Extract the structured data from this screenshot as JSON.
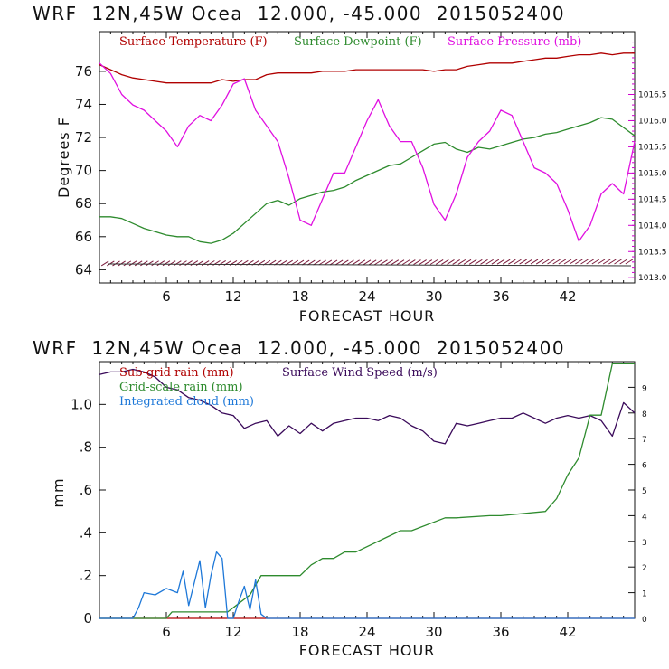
{
  "charts": {
    "top_title": "WRF  12N,45W Ocea  12.000, -45.000  2015052400",
    "bottom_title": "WRF  12N,45W Ocea  12.000, -45.000  2015052400"
  },
  "chart_data": [
    {
      "type": "line",
      "title": "WRF  12N,45W Ocea  12.000, -45.000  2015052400",
      "xlabel": "FORECAST HOUR",
      "ylabel": "Degrees F",
      "xlim": [
        0,
        48
      ],
      "ylim": [
        63.2,
        78.4
      ],
      "y2lim": [
        1012.9,
        1017.7
      ],
      "x_ticks": [
        6,
        12,
        18,
        24,
        30,
        36,
        42
      ],
      "y_ticks": [
        64,
        66,
        68,
        70,
        72,
        74,
        76
      ],
      "y2_ticks": [
        1013.0,
        1013.5,
        1014.0,
        1014.5,
        1015.0,
        1015.5,
        1016.0,
        1016.5
      ],
      "legend": [
        "Surface Temperature (F)",
        "Surface Dewpoint (F)",
        "Surface Pressure (mb)"
      ],
      "series": [
        {
          "name": "Surface Temperature (F)",
          "color": "#b00000",
          "axis": "left",
          "x": [
            0,
            1,
            2,
            3,
            4,
            5,
            6,
            7,
            8,
            9,
            10,
            11,
            12,
            13,
            14,
            15,
            16,
            17,
            18,
            19,
            20,
            21,
            22,
            23,
            24,
            25,
            26,
            27,
            28,
            29,
            30,
            31,
            32,
            33,
            34,
            35,
            36,
            37,
            38,
            39,
            40,
            41,
            42,
            43,
            44,
            45,
            46,
            47,
            48
          ],
          "values": [
            76.4,
            76.1,
            75.8,
            75.6,
            75.5,
            75.4,
            75.3,
            75.3,
            75.3,
            75.3,
            75.3,
            75.5,
            75.4,
            75.5,
            75.5,
            75.8,
            75.9,
            75.9,
            75.9,
            75.9,
            76.0,
            76.0,
            76.0,
            76.1,
            76.1,
            76.1,
            76.1,
            76.1,
            76.1,
            76.1,
            76.0,
            76.1,
            76.1,
            76.3,
            76.4,
            76.5,
            76.5,
            76.5,
            76.6,
            76.7,
            76.8,
            76.8,
            76.9,
            77.0,
            77.0,
            77.1,
            77.0,
            77.1,
            77.1
          ]
        },
        {
          "name": "Surface Dewpoint (F)",
          "color": "#2e8b2e",
          "axis": "left",
          "x": [
            0,
            1,
            2,
            3,
            4,
            5,
            6,
            7,
            8,
            9,
            10,
            11,
            12,
            13,
            14,
            15,
            16,
            17,
            18,
            19,
            20,
            21,
            22,
            23,
            24,
            25,
            26,
            27,
            28,
            29,
            30,
            31,
            32,
            33,
            34,
            35,
            36,
            37,
            38,
            39,
            40,
            41,
            42,
            43,
            44,
            45,
            46,
            47,
            48
          ],
          "values": [
            67.2,
            67.2,
            67.1,
            66.8,
            66.5,
            66.3,
            66.1,
            66.0,
            66.0,
            65.7,
            65.6,
            65.8,
            66.2,
            66.8,
            67.4,
            68.0,
            68.2,
            67.9,
            68.3,
            68.5,
            68.7,
            68.8,
            69.0,
            69.4,
            69.7,
            70.0,
            70.3,
            70.4,
            70.8,
            71.2,
            71.6,
            71.7,
            71.3,
            71.1,
            71.4,
            71.3,
            71.5,
            71.7,
            71.9,
            72.0,
            72.2,
            72.3,
            72.5,
            72.7,
            72.9,
            73.2,
            73.1,
            72.6,
            72.1
          ]
        },
        {
          "name": "Surface Pressure (mb)",
          "color": "#e010e0",
          "axis": "right",
          "x": [
            0,
            1,
            2,
            3,
            4,
            5,
            6,
            7,
            8,
            9,
            10,
            11,
            12,
            13,
            14,
            15,
            16,
            17,
            18,
            19,
            20,
            21,
            22,
            23,
            24,
            25,
            26,
            27,
            28,
            29,
            30,
            31,
            32,
            33,
            34,
            35,
            36,
            37,
            38,
            39,
            40,
            41,
            42,
            43,
            44,
            45,
            46,
            47,
            48
          ],
          "values": [
            1017.1,
            1016.9,
            1016.5,
            1016.3,
            1016.2,
            1016.0,
            1015.8,
            1015.5,
            1015.9,
            1016.1,
            1016.0,
            1016.3,
            1016.7,
            1016.8,
            1016.2,
            1015.9,
            1015.6,
            1014.9,
            1014.1,
            1014.0,
            1014.5,
            1015.0,
            1015.0,
            1015.5,
            1016.0,
            1016.4,
            1015.9,
            1015.6,
            1015.6,
            1015.1,
            1014.4,
            1014.1,
            1014.6,
            1015.3,
            1015.6,
            1015.8,
            1016.2,
            1016.1,
            1015.6,
            1015.1,
            1015.0,
            1014.8,
            1014.3,
            1013.7,
            1014.0,
            1014.6,
            1014.8,
            1014.6,
            1015.6
          ]
        }
      ]
    },
    {
      "type": "line",
      "title": "WRF  12N,45W Ocea  12.000, -45.000  2015052400",
      "xlabel": "FORECAST HOUR",
      "ylabel": "mm",
      "xlim": [
        0,
        48
      ],
      "ylim": [
        0,
        1.2
      ],
      "y2lim": [
        0,
        10
      ],
      "x_ticks": [
        6,
        12,
        18,
        24,
        30,
        36,
        42
      ],
      "y_tick_labels": [
        "0",
        ".2",
        ".4",
        ".6",
        ".8",
        "1.0"
      ],
      "y2_tick_labels": [
        "0",
        "1",
        "2",
        "3",
        "4",
        "5",
        "6",
        "7",
        "8",
        "9"
      ],
      "legend": [
        "Sub-grid rain (mm)",
        "Surface Wind Speed (m/s)",
        "Grid-scale rain (mm)",
        "Integrated cloud (mm)"
      ],
      "series": [
        {
          "name": "Sub-grid rain (mm)",
          "color": "#b00000",
          "axis": "left",
          "x": [
            0,
            48
          ],
          "values": [
            0,
            0
          ]
        },
        {
          "name": "Surface Wind Speed (m/s)",
          "color": "#3a0a5a",
          "axis": "right",
          "x": [
            0,
            1,
            2,
            3,
            4,
            5,
            6,
            7,
            8,
            9,
            10,
            11,
            12,
            13,
            14,
            15,
            16,
            17,
            18,
            19,
            20,
            21,
            22,
            23,
            24,
            25,
            26,
            27,
            28,
            29,
            30,
            31,
            32,
            33,
            34,
            35,
            36,
            37,
            38,
            39,
            40,
            41,
            42,
            43,
            44,
            45,
            46,
            47,
            48
          ],
          "values": [
            9.5,
            9.6,
            9.6,
            9.7,
            9.6,
            9.4,
            9.0,
            8.9,
            8.6,
            8.5,
            8.3,
            8.0,
            7.9,
            7.4,
            7.6,
            7.7,
            7.1,
            7.5,
            7.2,
            7.6,
            7.3,
            7.6,
            7.7,
            7.8,
            7.8,
            7.7,
            7.9,
            7.8,
            7.5,
            7.3,
            6.9,
            6.8,
            7.6,
            7.5,
            7.6,
            7.7,
            7.8,
            7.8,
            8.0,
            7.8,
            7.6,
            7.8,
            7.9,
            7.8,
            7.9,
            7.7,
            7.1,
            8.4,
            8.0
          ]
        },
        {
          "name": "Grid-scale rain (mm)",
          "color": "#2e8b2e",
          "axis": "left",
          "x": [
            0,
            6,
            6.5,
            11.5,
            12,
            13.5,
            14.5,
            18,
            19,
            20,
            21,
            22,
            23,
            27,
            28,
            31,
            32,
            35,
            36,
            40,
            41,
            42,
            43,
            44,
            45,
            46,
            47,
            48
          ],
          "values": [
            0,
            0,
            0.03,
            0.03,
            0.05,
            0.11,
            0.2,
            0.2,
            0.25,
            0.28,
            0.28,
            0.31,
            0.31,
            0.41,
            0.41,
            0.47,
            0.47,
            0.48,
            0.48,
            0.5,
            0.56,
            0.67,
            0.75,
            0.95,
            0.95,
            1.19,
            1.19,
            1.19
          ]
        },
        {
          "name": "Integrated cloud (mm)",
          "color": "#1e78d8",
          "axis": "left",
          "x": [
            0,
            3,
            3.5,
            4,
            5,
            6,
            7,
            7.5,
            8,
            9,
            9.5,
            10,
            10.5,
            11,
            11.5,
            12,
            12.5,
            13,
            13.5,
            14,
            14.5,
            15,
            16,
            48
          ],
          "values": [
            0,
            0,
            0.05,
            0.12,
            0.11,
            0.14,
            0.12,
            0.22,
            0.06,
            0.27,
            0.05,
            0.2,
            0.31,
            0.28,
            0.0,
            0.0,
            0.08,
            0.15,
            0.04,
            0.18,
            0.02,
            0.0,
            0.0,
            0.0
          ]
        }
      ]
    }
  ]
}
